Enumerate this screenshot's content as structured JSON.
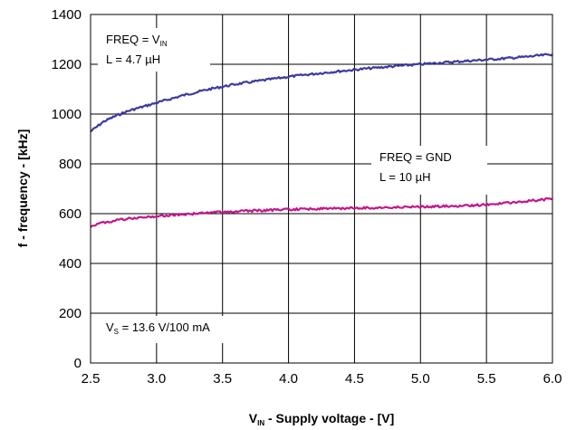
{
  "chart_data": {
    "type": "line",
    "xlabel": {
      "main": "V",
      "sub": "IN",
      "rest": " - Supply voltage - [V]"
    },
    "ylabel": "f - frequency - [kHz]",
    "xlim": [
      2.5,
      6.0
    ],
    "ylim": [
      0,
      1400
    ],
    "xticks": [
      2.5,
      3.0,
      3.5,
      4.0,
      4.5,
      5.0,
      5.5,
      6.0
    ],
    "xtick_labels": [
      "2.5",
      "3.0",
      "3.5",
      "4.0",
      "4.5",
      "5.0",
      "5.5",
      "6.0"
    ],
    "yticks": [
      0,
      200,
      400,
      600,
      800,
      1000,
      1200,
      1400
    ],
    "ytick_labels": [
      "0",
      "200",
      "400",
      "600",
      "800",
      "1000",
      "1200",
      "1400"
    ],
    "grid": true,
    "series": [
      {
        "color": "#3b3b9e",
        "x": [
          2.5,
          2.6,
          2.7,
          2.8,
          2.9,
          3.0,
          3.2,
          3.4,
          3.6,
          3.8,
          4.0,
          4.2,
          4.4,
          4.6,
          4.8,
          5.0,
          5.2,
          5.4,
          5.6,
          5.8,
          6.0
        ],
        "values": [
          930,
          970,
          995,
          1015,
          1030,
          1045,
          1075,
          1100,
          1120,
          1135,
          1150,
          1162,
          1173,
          1183,
          1192,
          1200,
          1208,
          1215,
          1222,
          1230,
          1240
        ]
      },
      {
        "color": "#c2188a",
        "x": [
          2.5,
          2.6,
          2.7,
          2.8,
          3.0,
          3.2,
          3.5,
          4.0,
          4.5,
          5.0,
          5.4,
          5.6,
          5.8,
          6.0
        ],
        "values": [
          550,
          565,
          573,
          580,
          590,
          597,
          607,
          617,
          622,
          627,
          633,
          640,
          650,
          660
        ]
      }
    ],
    "annotations": [
      {
        "lines": [
          {
            "parts": [
              {
                "t": "FREQ = V"
              },
              {
                "t": "IN",
                "sub": true
              }
            ]
          },
          {
            "parts": [
              {
                "t": "L = 4.7 µH"
              }
            ]
          }
        ]
      },
      {
        "lines": [
          {
            "parts": [
              {
                "t": "FREQ  = GND"
              }
            ]
          },
          {
            "parts": [
              {
                "t": "L = 10 µH"
              }
            ]
          }
        ]
      },
      {
        "lines": [
          {
            "parts": [
              {
                "t": "V"
              },
              {
                "t": "S",
                "sub": true
              },
              {
                "t": " = 13.6 V/100 mA"
              }
            ]
          }
        ]
      }
    ]
  }
}
